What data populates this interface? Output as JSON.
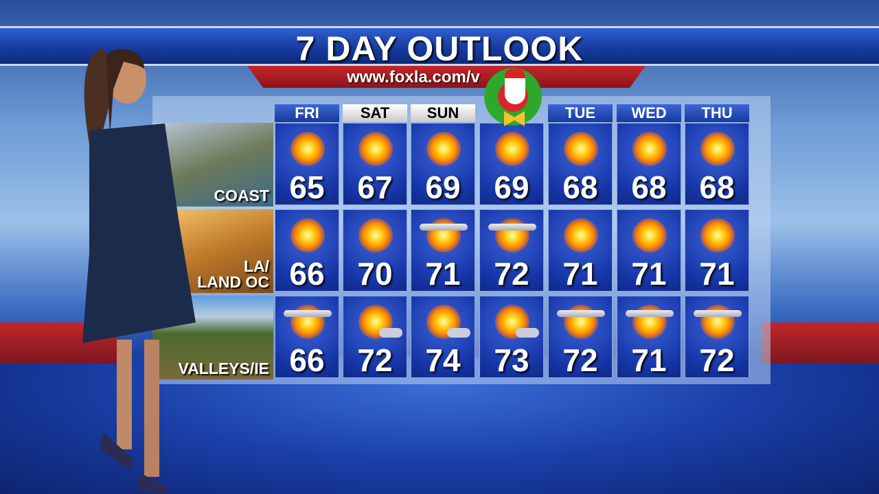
{
  "header": {
    "title": "7 DAY OUTLOOK",
    "url": "www.foxla.com/v"
  },
  "days": [
    {
      "label": "FRI",
      "style": "blue"
    },
    {
      "label": "SAT",
      "style": "white"
    },
    {
      "label": "SUN",
      "style": "white"
    },
    {
      "label": "",
      "style": "hidden"
    },
    {
      "label": "TUE",
      "style": "blue"
    },
    {
      "label": "WED",
      "style": "blue"
    },
    {
      "label": "THU",
      "style": "blue"
    }
  ],
  "regions": [
    {
      "name_line1": "",
      "name_line2": "COAST",
      "temps": [
        "65",
        "67",
        "69",
        "69",
        "68",
        "68",
        "68"
      ],
      "icons": [
        "sunny",
        "sunny",
        "sunny",
        "sunny",
        "sunny",
        "sunny",
        "sunny"
      ]
    },
    {
      "name_line1": "LA/",
      "name_line2": "LAND OC",
      "temps": [
        "66",
        "70",
        "71",
        "72",
        "71",
        "71",
        "71"
      ],
      "icons": [
        "sunny",
        "sunny",
        "hazy-sun",
        "hazy-sun",
        "sunny",
        "sunny",
        "sunny"
      ]
    },
    {
      "name_line1": "",
      "name_line2": "VALLEYS/IE",
      "temps": [
        "66",
        "72",
        "74",
        "73",
        "72",
        "71",
        "72"
      ],
      "icons": [
        "hazy-sun",
        "partly-sunny",
        "partly-sunny",
        "partly-sunny",
        "hazy-sun",
        "hazy-sun",
        "hazy-sun"
      ]
    }
  ],
  "colors": {
    "title_bar": "#163a9c",
    "url_bar": "#c5262b",
    "cell": "#1636a8"
  }
}
